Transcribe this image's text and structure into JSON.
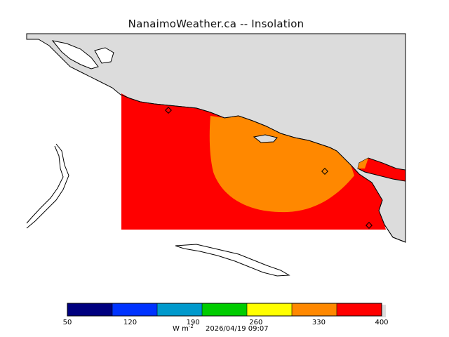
{
  "title": "NanaimoWeather.ca -- Insolation",
  "colorbar": {
    "ticks": [
      "50",
      "120",
      "190",
      "260",
      "330",
      "400"
    ],
    "colors": [
      "#00007f",
      "#0033ff",
      "#0099cc",
      "#00cc00",
      "#ffff00",
      "#ff8800",
      "#ff0000"
    ],
    "units_base": "W m",
    "units_exp": "-2"
  },
  "timestamp": "2026/04/19 09:07",
  "colors": {
    "land": "#dcdcdc",
    "field_high": "#ff0000",
    "field_mid": "#ff8800",
    "coastline": "#000000"
  },
  "markers": [
    "station-marker-1",
    "station-marker-2",
    "station-marker-3"
  ]
}
